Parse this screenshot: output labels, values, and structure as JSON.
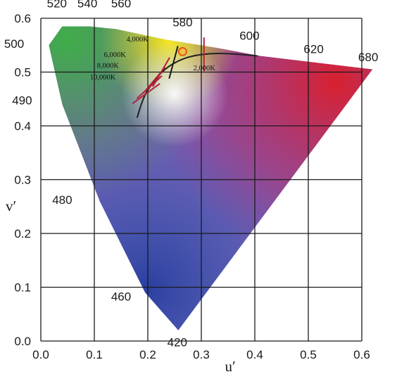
{
  "chart_data": {
    "type": "chromaticity-diagram",
    "xlabel": "u′",
    "ylabel": "v′",
    "xlim": [
      0,
      0.6
    ],
    "ylim": [
      0,
      0.6
    ],
    "grid": true,
    "x_ticks": [
      "0.0",
      "0.1",
      "0.2",
      "0.3",
      "0.4",
      "0.5",
      "0.6"
    ],
    "y_ticks": [
      "0.0",
      "0.1",
      "0.2",
      "0.3",
      "0.4",
      "0.5",
      "0.6"
    ],
    "spectral_locus": [
      {
        "label": "420",
        "u": 0.257,
        "v": 0.02
      },
      {
        "label": "460",
        "u": 0.195,
        "v": 0.09
      },
      {
        "label": "480",
        "u": 0.11,
        "v": 0.26
      },
      {
        "label": "490",
        "u": 0.04,
        "v": 0.44
      },
      {
        "label": "500",
        "u": 0.015,
        "v": 0.55
      },
      {
        "label": "520",
        "u": 0.04,
        "v": 0.585
      },
      {
        "label": "540",
        "u": 0.09,
        "v": 0.585
      },
      {
        "label": "560",
        "u": 0.14,
        "v": 0.58
      },
      {
        "label": "580",
        "u": 0.235,
        "v": 0.56
      },
      {
        "label": "600",
        "u": 0.33,
        "v": 0.545
      },
      {
        "label": "620",
        "u": 0.41,
        "v": 0.53
      },
      {
        "label": "680",
        "u": 0.62,
        "v": 0.505
      }
    ],
    "wavelength_labels": [
      {
        "text": "420",
        "u": 0.255,
        "v": -0.01
      },
      {
        "text": "460",
        "u": 0.15,
        "v": 0.075
      },
      {
        "text": "480",
        "u": 0.04,
        "v": 0.255
      },
      {
        "text": "490",
        "u": -0.035,
        "v": 0.44
      },
      {
        "text": "500",
        "u": -0.05,
        "v": 0.545
      },
      {
        "text": "520",
        "u": 0.03,
        "v": 0.62
      },
      {
        "text": "540",
        "u": 0.087,
        "v": 0.62
      },
      {
        "text": "560",
        "u": 0.15,
        "v": 0.62
      },
      {
        "text": "580",
        "u": 0.265,
        "v": 0.585
      },
      {
        "text": "600",
        "u": 0.39,
        "v": 0.56
      },
      {
        "text": "620",
        "u": 0.51,
        "v": 0.535
      },
      {
        "text": "680",
        "u": 0.612,
        "v": 0.52
      }
    ],
    "planckian_locus": [
      {
        "u": 0.18,
        "v": 0.415
      },
      {
        "u": 0.19,
        "v": 0.45
      },
      {
        "u": 0.205,
        "v": 0.475
      },
      {
        "u": 0.225,
        "v": 0.5
      },
      {
        "u": 0.25,
        "v": 0.518
      },
      {
        "u": 0.28,
        "v": 0.53
      },
      {
        "u": 0.32,
        "v": 0.535
      },
      {
        "u": 0.36,
        "v": 0.534
      },
      {
        "u": 0.405,
        "v": 0.53
      }
    ],
    "isotherms": [
      {
        "label": "2,000K",
        "u": 0.305,
        "v": 0.533,
        "angle": 90,
        "label_u": 0.285,
        "label_v": 0.503
      },
      {
        "label": "",
        "u": 0.248,
        "v": 0.518,
        "angle": 105,
        "label_u": 0,
        "label_v": 0
      },
      {
        "label": "4,000K",
        "u": 0.225,
        "v": 0.5,
        "angle": 120,
        "label_u": 0.16,
        "label_v": 0.557
      },
      {
        "label": "6,000K",
        "u": 0.212,
        "v": 0.485,
        "angle": 130,
        "label_u": 0.118,
        "label_v": 0.528
      },
      {
        "label": "8,000K",
        "u": 0.203,
        "v": 0.472,
        "angle": 138,
        "label_u": 0.105,
        "label_v": 0.508
      },
      {
        "label": "10,000K",
        "u": 0.197,
        "v": 0.46,
        "angle": 144,
        "label_u": 0.092,
        "label_v": 0.486
      }
    ],
    "white_point": {
      "u": 0.265,
      "v": 0.538
    }
  },
  "colors": {
    "grid": "#1a1a1a",
    "locus_curve": "#222222",
    "isotherm_red": "#b0233a",
    "isotherm_black": "#1a1a1a",
    "white_point_stroke": "#e05a10",
    "white_point_fill": "#f2c14a"
  }
}
